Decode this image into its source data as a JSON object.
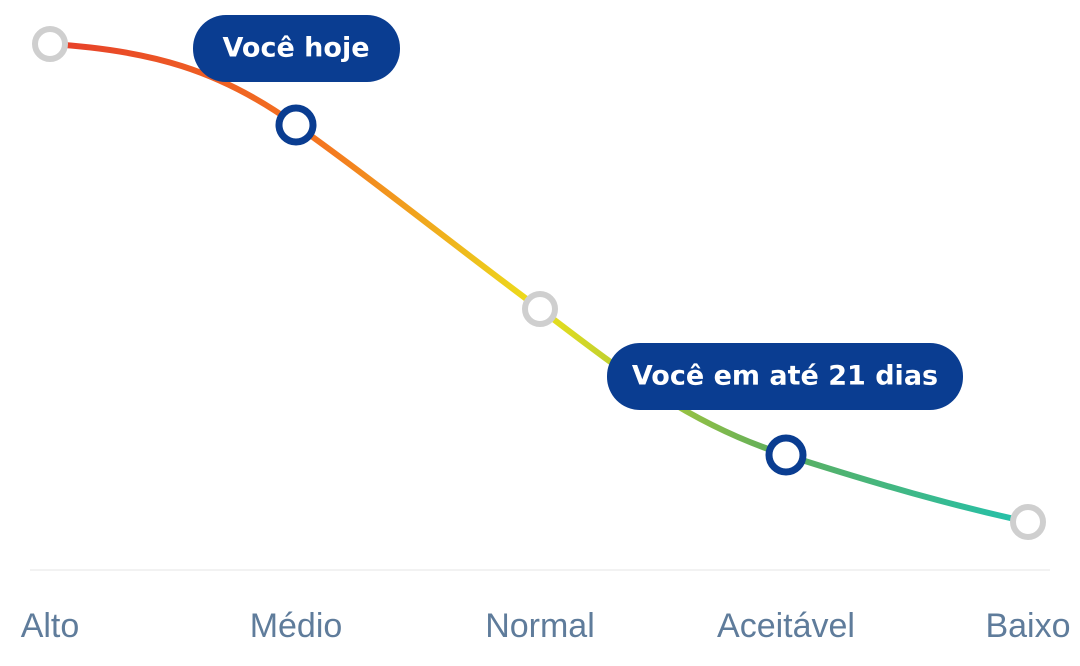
{
  "levels": [
    "Alto",
    "Médio",
    "Normal",
    "Aceitável",
    "Baixo"
  ],
  "callouts": [
    "Você hoje",
    "Você em até 21 dias"
  ]
}
